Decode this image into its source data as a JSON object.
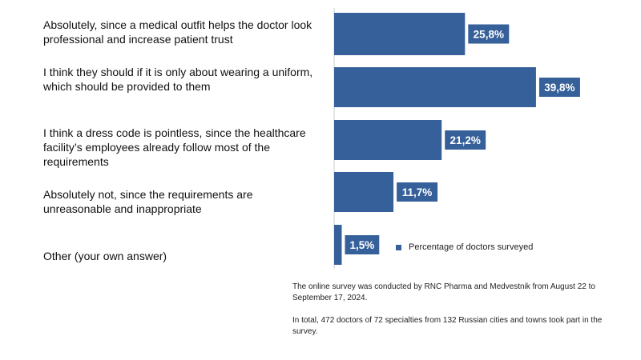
{
  "chart_data": {
    "type": "bar",
    "orientation": "horizontal",
    "categories": [
      "Absolutely, since a medical outfit helps the doctor look professional and increase patient trust",
      "I think they should if it is only about wearing a uniform, which should be provided to them",
      "I think a dress code is pointless, since the healthcare facility’s employees already follow most of the requirements",
      "Absolutely not, since the requirements are unreasonable and inappropriate",
      "Other (your own answer)"
    ],
    "values": [
      25.8,
      39.8,
      21.2,
      11.7,
      1.5
    ],
    "value_labels": [
      "25,8%",
      "39,8%",
      "21,2%",
      "11,7%",
      "1,5%"
    ],
    "series": [
      {
        "name": "Percentage of doctors surveyed",
        "values": [
          25.8,
          39.8,
          21.2,
          11.7,
          1.5
        ]
      }
    ],
    "legend": "bottom-right",
    "grid": false,
    "xlim": [
      0,
      40
    ],
    "colors": {
      "bar": "#36609a",
      "label_box": "#36609a",
      "label_text": "#ffffff",
      "axis": "#cccccc"
    }
  },
  "notes": [
    "The online survey was conducted by RNC Pharma and Medvestnik from August 22 to September 17, 2024.",
    "In total, 472 doctors of 72 specialties from 132 Russian cities and towns took part in the survey."
  ]
}
